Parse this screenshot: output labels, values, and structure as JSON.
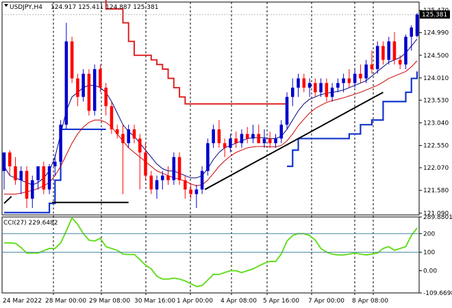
{
  "header": {
    "symbol": "USDJPY,H4",
    "ohlc": "124.917 125.411 124.887 125.381"
  },
  "current_price_label": "125.381",
  "colors": {
    "bull": "#0000cd",
    "bear": "#ff0000",
    "ma_fast": "#000080",
    "ma_slow": "#cc0000",
    "channel_top": "#dd2222",
    "channel_bottom": "#1133cc",
    "trendline": "#000000",
    "cci": "#66dd22",
    "cci_level": "#4a8aa8",
    "price_tag_bg": "#000000"
  },
  "indicator": {
    "label": "CCI(27) 229.6482"
  },
  "chart_data": [
    {
      "type": "candlestick",
      "title": "USDJPY,H4",
      "y_ticks": [
        "125.470",
        "124.990",
        "124.500",
        "124.010",
        "123.530",
        "123.040",
        "122.550",
        "122.070",
        "121.580",
        "121.090"
      ],
      "y_tick_values": [
        125.47,
        124.99,
        124.5,
        124.01,
        123.53,
        123.04,
        122.55,
        122.07,
        121.58,
        121.09
      ],
      "ylim": [
        121.05,
        125.65
      ],
      "x_ticks": [
        "24 Mar 2022",
        "28 Mar 00:00",
        "29 Mar 08:00",
        "30 Mar 16:00",
        "1 Apr 00:00",
        "4 Apr 08:00",
        "5 Apr 16:00",
        "7 Apr 00:00",
        "8 Apr 08:00"
      ],
      "candles_ohlc": [
        [
          122.0,
          122.4,
          121.6,
          122.4
        ],
        [
          122.4,
          122.45,
          121.9,
          122.1
        ],
        [
          122.1,
          122.3,
          121.7,
          121.8
        ],
        [
          121.8,
          122.1,
          121.5,
          122.0
        ],
        [
          122.0,
          122.1,
          121.2,
          121.4
        ],
        [
          121.4,
          121.9,
          121.2,
          121.8
        ],
        [
          121.8,
          122.1,
          121.6,
          122.1
        ],
        [
          122.1,
          122.2,
          121.5,
          121.6
        ],
        [
          121.6,
          122.15,
          121.5,
          122.1
        ],
        [
          122.1,
          122.35,
          121.9,
          122.2
        ],
        [
          122.2,
          123.1,
          122.1,
          123.0
        ],
        [
          123.0,
          125.2,
          122.9,
          124.8
        ],
        [
          124.8,
          124.9,
          123.9,
          124.0
        ],
        [
          124.0,
          124.1,
          123.4,
          123.6
        ],
        [
          123.6,
          124.2,
          123.5,
          124.1
        ],
        [
          124.1,
          124.2,
          123.2,
          123.3
        ],
        [
          123.3,
          124.3,
          123.2,
          124.2
        ],
        [
          124.2,
          124.3,
          123.7,
          123.8
        ],
        [
          123.8,
          123.9,
          123.2,
          123.4
        ],
        [
          123.4,
          123.5,
          122.8,
          122.9
        ],
        [
          122.9,
          123.0,
          122.7,
          122.8
        ],
        [
          122.8,
          123.0,
          121.5,
          122.6
        ],
        [
          122.6,
          123.0,
          122.5,
          122.9
        ],
        [
          122.9,
          123.0,
          122.6,
          122.7
        ],
        [
          122.7,
          122.8,
          121.6,
          122.4
        ],
        [
          122.4,
          122.6,
          121.8,
          121.9
        ],
        [
          121.9,
          122.0,
          121.5,
          121.6
        ],
        [
          121.6,
          121.9,
          121.4,
          121.8
        ],
        [
          121.8,
          122.0,
          121.6,
          121.9
        ],
        [
          121.9,
          122.1,
          121.7,
          121.8
        ],
        [
          121.8,
          122.4,
          121.7,
          122.3
        ],
        [
          122.3,
          122.4,
          121.7,
          121.8
        ],
        [
          121.8,
          121.9,
          121.4,
          121.6
        ],
        [
          121.6,
          121.7,
          121.4,
          121.5
        ],
        [
          121.5,
          121.7,
          121.2,
          121.6
        ],
        [
          121.6,
          122.1,
          121.5,
          122.0
        ],
        [
          122.0,
          122.7,
          121.9,
          122.6
        ],
        [
          122.6,
          123.0,
          122.5,
          122.9
        ],
        [
          122.9,
          123.1,
          122.5,
          122.6
        ],
        [
          122.6,
          122.7,
          122.3,
          122.5
        ],
        [
          122.5,
          122.8,
          122.4,
          122.7
        ],
        [
          122.7,
          122.85,
          122.5,
          122.6
        ],
        [
          122.6,
          122.9,
          122.5,
          122.8
        ],
        [
          122.8,
          122.95,
          122.6,
          122.7
        ],
        [
          122.7,
          123.0,
          122.6,
          122.8
        ],
        [
          122.8,
          123.0,
          122.6,
          122.6
        ],
        [
          122.6,
          122.9,
          122.5,
          122.7
        ],
        [
          122.7,
          122.85,
          122.5,
          122.6
        ],
        [
          122.6,
          122.8,
          122.5,
          122.7
        ],
        [
          122.7,
          123.1,
          122.6,
          123.0
        ],
        [
          123.0,
          123.7,
          122.9,
          123.6
        ],
        [
          123.6,
          124.0,
          123.4,
          123.8
        ],
        [
          123.8,
          124.1,
          123.6,
          124.0
        ],
        [
          124.0,
          124.1,
          123.7,
          123.8
        ],
        [
          123.8,
          124.0,
          123.6,
          123.9
        ],
        [
          123.9,
          124.0,
          123.6,
          123.7
        ],
        [
          123.7,
          124.0,
          123.6,
          123.9
        ],
        [
          123.9,
          124.0,
          123.5,
          123.6
        ],
        [
          123.6,
          123.9,
          123.5,
          123.8
        ],
        [
          123.8,
          124.0,
          123.7,
          123.9
        ],
        [
          123.9,
          124.1,
          123.7,
          124.0
        ],
        [
          124.0,
          124.2,
          123.8,
          123.9
        ],
        [
          123.9,
          124.2,
          123.8,
          124.1
        ],
        [
          124.1,
          124.3,
          123.9,
          124.0
        ],
        [
          124.0,
          124.4,
          123.9,
          124.3
        ],
        [
          124.3,
          124.6,
          124.1,
          124.2
        ],
        [
          124.2,
          124.8,
          124.1,
          124.7
        ],
        [
          124.7,
          124.8,
          124.3,
          124.4
        ],
        [
          124.4,
          124.9,
          124.3,
          124.8
        ],
        [
          124.8,
          125.0,
          124.3,
          124.4
        ],
        [
          124.4,
          124.5,
          124.2,
          124.3
        ],
        [
          124.3,
          124.95,
          124.2,
          124.9
        ],
        [
          124.9,
          125.15,
          124.6,
          125.1
        ],
        [
          124.917,
          125.411,
          124.887,
          125.381
        ]
      ],
      "ma_fast": [
        122.1,
        121.9,
        121.85,
        121.8,
        121.75,
        121.7,
        121.75,
        121.85,
        122.0,
        122.3,
        122.8,
        123.3,
        123.6,
        123.7,
        123.8,
        123.85,
        123.85,
        123.8,
        123.7,
        123.5,
        123.25,
        123.0,
        122.85,
        122.75,
        122.6,
        122.45,
        122.3,
        122.15,
        122.05,
        122.0,
        122.0,
        121.95,
        121.9,
        121.85,
        121.85,
        121.9,
        122.05,
        122.25,
        122.4,
        122.5,
        122.55,
        122.6,
        122.65,
        122.7,
        122.72,
        122.72,
        122.72,
        122.7,
        122.7,
        122.75,
        122.9,
        123.1,
        123.3,
        123.45,
        123.55,
        123.6,
        123.65,
        123.68,
        123.7,
        123.72,
        123.75,
        123.8,
        123.85,
        123.9,
        123.95,
        124.05,
        124.15,
        124.25,
        124.35,
        124.4,
        124.45,
        124.55,
        124.7,
        124.85
      ],
      "ma_slow": [
        121.5,
        121.5,
        121.5,
        121.52,
        121.55,
        121.58,
        121.62,
        121.68,
        121.75,
        121.9,
        122.1,
        122.35,
        122.6,
        122.8,
        122.95,
        123.05,
        123.1,
        123.1,
        123.05,
        122.95,
        122.8,
        122.65,
        122.5,
        122.4,
        122.3,
        122.2,
        122.1,
        122.0,
        121.95,
        121.9,
        121.85,
        121.82,
        121.78,
        121.72,
        121.68,
        121.7,
        121.8,
        121.95,
        122.1,
        122.22,
        122.32,
        122.4,
        122.45,
        122.5,
        122.52,
        122.53,
        122.53,
        122.52,
        122.52,
        122.55,
        122.65,
        122.8,
        122.98,
        123.12,
        123.25,
        123.35,
        123.42,
        123.48,
        123.52,
        123.55,
        123.58,
        123.62,
        123.66,
        123.7,
        123.75,
        123.8,
        123.85,
        123.92,
        124.0,
        124.05,
        124.1,
        124.15,
        124.25,
        124.38
      ],
      "channel_top": [
        125.8,
        125.8,
        125.8,
        125.8,
        125.8,
        125.8,
        125.8,
        125.8,
        125.8,
        125.8,
        125.8,
        125.8,
        125.8,
        125.8,
        125.8,
        125.8,
        125.8,
        125.8,
        125.5,
        125.5,
        125.5,
        125.2,
        124.8,
        124.5,
        124.5,
        124.5,
        124.4,
        124.3,
        124.2,
        124.0,
        123.8,
        123.6,
        123.45,
        123.45,
        123.45,
        123.45,
        123.45,
        123.45,
        123.45,
        123.45,
        123.45,
        123.45,
        123.45,
        123.45,
        123.45,
        123.45,
        123.45,
        123.45,
        123.45,
        123.45,
        123.45
      ],
      "channel_bottom": [
        121.1,
        121.1,
        121.1,
        121.1,
        121.1,
        121.1,
        121.1,
        121.1,
        121.3,
        121.8,
        122.9,
        122.9,
        122.9,
        122.9,
        122.9,
        122.9,
        122.9,
        122.9,
        122.9,
        null,
        null,
        null,
        null,
        null,
        null,
        null,
        null,
        null,
        null,
        null,
        null,
        null,
        null,
        null,
        null,
        null,
        null,
        null,
        null,
        null,
        null,
        null,
        null,
        null,
        null,
        null,
        null,
        null,
        null,
        null,
        122.1,
        122.45,
        122.7,
        122.7,
        122.7,
        122.7,
        122.7,
        122.7,
        122.7,
        122.7,
        122.7,
        122.8,
        122.8,
        123.0,
        123.0,
        123.1,
        123.1,
        123.5,
        123.5,
        123.5,
        123.5,
        123.7,
        124.0,
        124.15
      ],
      "cci_ticks": [
        "289.8801",
        "200",
        "100",
        "0.00",
        "-109.6698"
      ],
      "cci_levels": [
        200,
        100
      ],
      "cci_ylim": [
        -120,
        290
      ],
      "cci_values": [
        150,
        150,
        148,
        125,
        95,
        95,
        95,
        108,
        120,
        120,
        150,
        215,
        285,
        250,
        200,
        165,
        160,
        175,
        130,
        120,
        110,
        90,
        88,
        88,
        60,
        30,
        10,
        -30,
        -45,
        -45,
        -40,
        -45,
        -55,
        -70,
        -85,
        -80,
        -50,
        -20,
        -20,
        -10,
        0,
        0,
        -10,
        0,
        10,
        25,
        40,
        50,
        50,
        90,
        160,
        190,
        200,
        200,
        190,
        165,
        120,
        100,
        90,
        85,
        85,
        90,
        95,
        90,
        85,
        90,
        95,
        120,
        130,
        110,
        120,
        130,
        190,
        230
      ]
    }
  ]
}
